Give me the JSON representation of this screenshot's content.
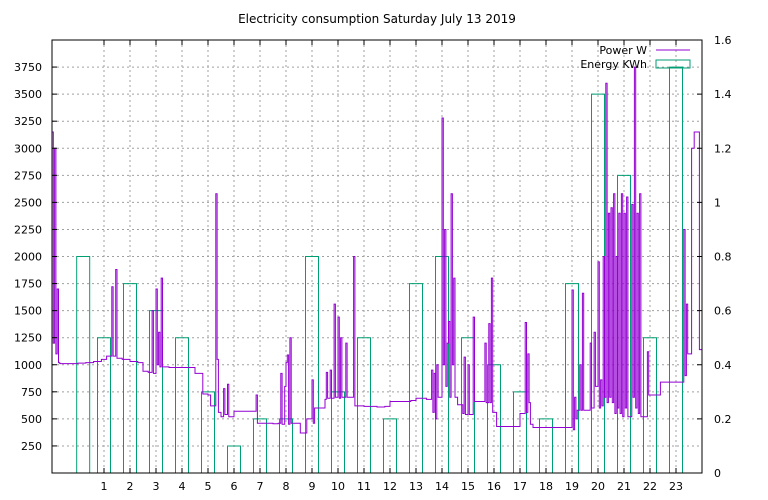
{
  "chart_data": {
    "type": "line",
    "title": "Electricity consumption Saturday July 13 2019",
    "xlabel": "",
    "ylabel": "",
    "y2label": "",
    "grid": true,
    "legend_position": "top-right",
    "xlim": [
      -1,
      24
    ],
    "ylim": [
      0,
      4000
    ],
    "y2lim": [
      0,
      1.6
    ],
    "x_ticks": [
      1,
      2,
      3,
      4,
      5,
      6,
      7,
      8,
      9,
      10,
      11,
      12,
      13,
      14,
      15,
      16,
      17,
      18,
      19,
      20,
      21,
      22,
      23
    ],
    "y_ticks": [
      250,
      500,
      750,
      1000,
      1250,
      1500,
      1750,
      2000,
      2250,
      2500,
      2750,
      3000,
      3250,
      3500,
      3750
    ],
    "y2_ticks": [
      0,
      0.2,
      0.4,
      0.6,
      0.8,
      1,
      1.2,
      1.4,
      1.6
    ],
    "y2_tick_labels": [
      "0",
      "0.2",
      "0.4",
      "0.6",
      "0.8",
      "1",
      "1.2",
      "1.4",
      "1.6"
    ],
    "colors": {
      "power": "#9400d3",
      "energy": "#009e73"
    },
    "series": [
      {
        "name": "Power W",
        "axis": "left",
        "style": "steps",
        "points": [
          [
            -1.0,
            3150
          ],
          [
            -0.95,
            1200
          ],
          [
            -0.9,
            3000
          ],
          [
            -0.85,
            1100
          ],
          [
            -0.8,
            1700
          ],
          [
            -0.75,
            1020
          ],
          [
            -0.7,
            1010
          ],
          [
            -0.3,
            1010
          ],
          [
            0.0,
            1015
          ],
          [
            0.3,
            1020
          ],
          [
            0.6,
            1030
          ],
          [
            0.9,
            1050
          ],
          [
            1.1,
            1080
          ],
          [
            1.3,
            1720
          ],
          [
            1.35,
            1080
          ],
          [
            1.45,
            1880
          ],
          [
            1.5,
            1060
          ],
          [
            1.7,
            1050
          ],
          [
            2.0,
            1030
          ],
          [
            2.3,
            1020
          ],
          [
            2.5,
            940
          ],
          [
            2.7,
            930
          ],
          [
            2.85,
            1500
          ],
          [
            2.9,
            920
          ],
          [
            3.0,
            1700
          ],
          [
            3.05,
            1000
          ],
          [
            3.1,
            1300
          ],
          [
            3.15,
            980
          ],
          [
            3.2,
            1800
          ],
          [
            3.25,
            980
          ],
          [
            3.5,
            975
          ],
          [
            4.0,
            975
          ],
          [
            4.3,
            975
          ],
          [
            4.5,
            920
          ],
          [
            4.8,
            730
          ],
          [
            5.0,
            720
          ],
          [
            5.1,
            620
          ],
          [
            5.3,
            2580
          ],
          [
            5.35,
            1050
          ],
          [
            5.4,
            560
          ],
          [
            5.5,
            520
          ],
          [
            5.6,
            780
          ],
          [
            5.65,
            540
          ],
          [
            5.75,
            820
          ],
          [
            5.8,
            520
          ],
          [
            6.0,
            570
          ],
          [
            6.4,
            570
          ],
          [
            6.8,
            570
          ],
          [
            6.85,
            720
          ],
          [
            6.9,
            460
          ],
          [
            7.2,
            460
          ],
          [
            7.5,
            455
          ],
          [
            7.7,
            460
          ],
          [
            7.8,
            920
          ],
          [
            7.85,
            450
          ],
          [
            7.95,
            800
          ],
          [
            8.0,
            1020
          ],
          [
            8.05,
            1090
          ],
          [
            8.1,
            450
          ],
          [
            8.15,
            1250
          ],
          [
            8.2,
            460
          ],
          [
            8.3,
            460
          ],
          [
            8.5,
            460
          ],
          [
            8.55,
            370
          ],
          [
            8.7,
            370
          ],
          [
            8.8,
            500
          ],
          [
            9.0,
            860
          ],
          [
            9.05,
            460
          ],
          [
            9.1,
            600
          ],
          [
            9.3,
            600
          ],
          [
            9.5,
            680
          ],
          [
            9.55,
            930
          ],
          [
            9.6,
            690
          ],
          [
            9.7,
            950
          ],
          [
            9.75,
            690
          ],
          [
            9.85,
            1560
          ],
          [
            9.9,
            700
          ],
          [
            10.0,
            1440
          ],
          [
            10.05,
            690
          ],
          [
            10.1,
            1250
          ],
          [
            10.15,
            700
          ],
          [
            10.3,
            1200
          ],
          [
            10.35,
            700
          ],
          [
            10.5,
            700
          ],
          [
            10.6,
            2000
          ],
          [
            10.65,
            620
          ],
          [
            11.0,
            615
          ],
          [
            11.5,
            610
          ],
          [
            11.8,
            615
          ],
          [
            12.0,
            660
          ],
          [
            12.4,
            660
          ],
          [
            12.8,
            670
          ],
          [
            13.0,
            690
          ],
          [
            13.2,
            690
          ],
          [
            13.4,
            680
          ],
          [
            13.6,
            950
          ],
          [
            13.65,
            560
          ],
          [
            13.7,
            920
          ],
          [
            13.75,
            500
          ],
          [
            13.8,
            1000
          ],
          [
            13.85,
            700
          ],
          [
            14.0,
            3280
          ],
          [
            14.05,
            1000
          ],
          [
            14.1,
            2250
          ],
          [
            14.15,
            800
          ],
          [
            14.2,
            1200
          ],
          [
            14.25,
            1400
          ],
          [
            14.3,
            700
          ],
          [
            14.35,
            2580
          ],
          [
            14.4,
            1000
          ],
          [
            14.45,
            1800
          ],
          [
            14.5,
            700
          ],
          [
            14.6,
            630
          ],
          [
            14.8,
            550
          ],
          [
            14.85,
            1070
          ],
          [
            14.9,
            540
          ],
          [
            15.0,
            1000
          ],
          [
            15.05,
            540
          ],
          [
            15.2,
            1440
          ],
          [
            15.25,
            660
          ],
          [
            15.5,
            660
          ],
          [
            15.65,
            1200
          ],
          [
            15.7,
            650
          ],
          [
            15.8,
            1380
          ],
          [
            15.85,
            650
          ],
          [
            15.9,
            1800
          ],
          [
            15.95,
            560
          ],
          [
            16.0,
            560
          ],
          [
            16.1,
            430
          ],
          [
            16.5,
            430
          ],
          [
            16.9,
            430
          ],
          [
            17.0,
            550
          ],
          [
            17.1,
            550
          ],
          [
            17.2,
            1390
          ],
          [
            17.25,
            560
          ],
          [
            17.3,
            1100
          ],
          [
            17.35,
            650
          ],
          [
            17.4,
            450
          ],
          [
            17.5,
            420
          ],
          [
            18.0,
            420
          ],
          [
            18.5,
            420
          ],
          [
            18.9,
            420
          ],
          [
            19.0,
            1690
          ],
          [
            19.05,
            400
          ],
          [
            19.1,
            700
          ],
          [
            19.15,
            500
          ],
          [
            19.2,
            580
          ],
          [
            19.3,
            1000
          ],
          [
            19.35,
            580
          ],
          [
            19.4,
            1660
          ],
          [
            19.45,
            580
          ],
          [
            19.6,
            580
          ],
          [
            19.7,
            1200
          ],
          [
            19.75,
            600
          ],
          [
            19.85,
            1300
          ],
          [
            19.9,
            800
          ],
          [
            20.0,
            1950
          ],
          [
            20.05,
            600
          ],
          [
            20.1,
            860
          ],
          [
            20.15,
            620
          ],
          [
            20.2,
            2000
          ],
          [
            20.25,
            700
          ],
          [
            20.3,
            3600
          ],
          [
            20.35,
            650
          ],
          [
            20.4,
            2400
          ],
          [
            20.45,
            700
          ],
          [
            20.5,
            2450
          ],
          [
            20.55,
            650
          ],
          [
            20.6,
            2580
          ],
          [
            20.65,
            550
          ],
          [
            20.7,
            2000
          ],
          [
            20.75,
            600
          ],
          [
            20.8,
            2400
          ],
          [
            20.85,
            550
          ],
          [
            20.9,
            2580
          ],
          [
            20.95,
            520
          ],
          [
            21.0,
            2400
          ],
          [
            21.05,
            600
          ],
          [
            21.1,
            2550
          ],
          [
            21.15,
            520
          ],
          [
            21.3,
            2480
          ],
          [
            21.35,
            700
          ],
          [
            21.4,
            3750
          ],
          [
            21.45,
            600
          ],
          [
            21.5,
            2400
          ],
          [
            21.55,
            550
          ],
          [
            21.6,
            2580
          ],
          [
            21.65,
            520
          ],
          [
            21.8,
            520
          ],
          [
            21.9,
            1120
          ],
          [
            21.95,
            720
          ],
          [
            22.2,
            720
          ],
          [
            22.4,
            840
          ],
          [
            22.6,
            840
          ],
          [
            22.8,
            840
          ],
          [
            23.0,
            840
          ],
          [
            23.1,
            840
          ],
          [
            23.3,
            2250
          ],
          [
            23.35,
            900
          ],
          [
            23.4,
            1560
          ],
          [
            23.45,
            1100
          ],
          [
            23.6,
            3000
          ],
          [
            23.7,
            3150
          ],
          [
            23.85,
            3150
          ],
          [
            23.9,
            1140
          ],
          [
            24.0,
            1140
          ]
        ]
      },
      {
        "name": "Energy KWh",
        "axis": "right",
        "style": "boxes",
        "values": [
          {
            "x": 0.2,
            "y": 0.8
          },
          {
            "x": 1,
            "y": 0.5
          },
          {
            "x": 2,
            "y": 0.7
          },
          {
            "x": 3,
            "y": 0.6
          },
          {
            "x": 4,
            "y": 0.5
          },
          {
            "x": 5,
            "y": 0.3
          },
          {
            "x": 6,
            "y": 0.1
          },
          {
            "x": 7,
            "y": 0.2
          },
          {
            "x": 8,
            "y": 0.2
          },
          {
            "x": 9,
            "y": 0.8
          },
          {
            "x": 10,
            "y": 0.3
          },
          {
            "x": 11,
            "y": 0.5
          },
          {
            "x": 12,
            "y": 0.2
          },
          {
            "x": 13,
            "y": 0.7
          },
          {
            "x": 14,
            "y": 0.8
          },
          {
            "x": 15,
            "y": 0.5
          },
          {
            "x": 16,
            "y": 0.4
          },
          {
            "x": 17,
            "y": 0.3
          },
          {
            "x": 18,
            "y": 0.2
          },
          {
            "x": 19,
            "y": 0.7
          },
          {
            "x": 20,
            "y": 1.4
          },
          {
            "x": 21,
            "y": 1.1
          },
          {
            "x": 22,
            "y": 0.5
          },
          {
            "x": 23,
            "y": 1.5
          }
        ]
      }
    ]
  }
}
